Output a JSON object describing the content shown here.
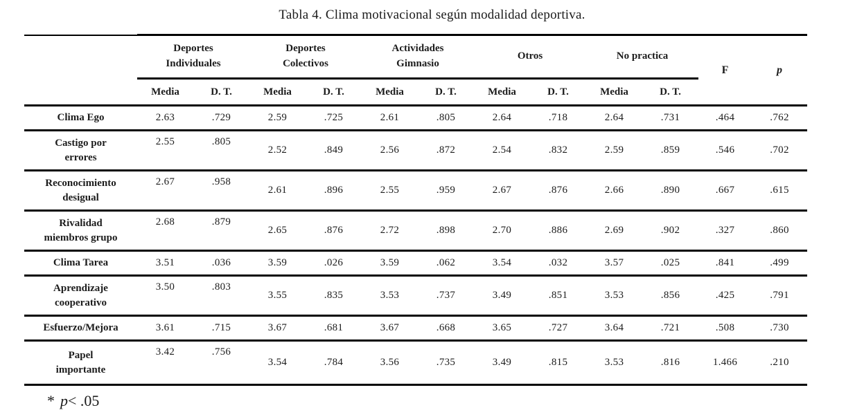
{
  "title": "Tabla 4. Clima motivacional según modalidad deportiva.",
  "table": {
    "groups": [
      {
        "label": "Deportes\nIndividuales"
      },
      {
        "label": "Deportes\nColectivos"
      },
      {
        "label": "Actividades\nGimnasio"
      },
      {
        "label": "Otros"
      },
      {
        "label": "No practica"
      }
    ],
    "subheaders": [
      "Media",
      "D. T.",
      "Media",
      "D. T.",
      "Media",
      "D. T.",
      "Media",
      "D. T.",
      "Media",
      "D. T."
    ],
    "stat_headers": {
      "f": "F",
      "p": "p"
    },
    "rows": [
      {
        "label": "Clima Ego",
        "values": [
          "2.63",
          ".729",
          "2.59",
          ".725",
          "2.61",
          ".805",
          "2.64",
          ".718",
          "2.64",
          ".731",
          ".464",
          ".762"
        ]
      },
      {
        "label": "Castigo por\nerrores",
        "values": [
          "2.55",
          ".805",
          "2.52",
          ".849",
          "2.56",
          ".872",
          "2.54",
          ".832",
          "2.59",
          ".859",
          ".546",
          ".702"
        ]
      },
      {
        "label": "Reconocimiento\ndesigual",
        "values": [
          "2.67",
          ".958",
          "2.61",
          ".896",
          "2.55",
          ".959",
          "2.67",
          ".876",
          "2.66",
          ".890",
          ".667",
          ".615"
        ]
      },
      {
        "label": "Rivalidad\nmiembros grupo",
        "values": [
          "2.68",
          ".879",
          "2.65",
          ".876",
          "2.72",
          ".898",
          "2.70",
          ".886",
          "2.69",
          ".902",
          ".327",
          ".860"
        ]
      },
      {
        "label": "Clima Tarea",
        "values": [
          "3.51",
          ".036",
          "3.59",
          ".026",
          "3.59",
          ".062",
          "3.54",
          ".032",
          "3.57",
          ".025",
          ".841",
          ".499"
        ]
      },
      {
        "label": "Aprendizaje\ncooperativo",
        "values": [
          "3.50",
          ".803",
          "3.55",
          ".835",
          "3.53",
          ".737",
          "3.49",
          ".851",
          "3.53",
          ".856",
          ".425",
          ".791"
        ]
      },
      {
        "label": "Esfuerzo/Mejora",
        "values": [
          "3.61",
          ".715",
          "3.67",
          ".681",
          "3.67",
          ".668",
          "3.65",
          ".727",
          "3.64",
          ".721",
          ".508",
          ".730"
        ]
      },
      {
        "label": "Papel\nimportante",
        "values": [
          "3.42",
          ".756",
          "3.54",
          ".784",
          "3.56",
          ".735",
          "3.49",
          ".815",
          "3.53",
          ".816",
          "1.466",
          ".210"
        ]
      }
    ]
  },
  "footnote": {
    "marker": "*",
    "p_symbol": "p",
    "comparison": "< .05"
  }
}
